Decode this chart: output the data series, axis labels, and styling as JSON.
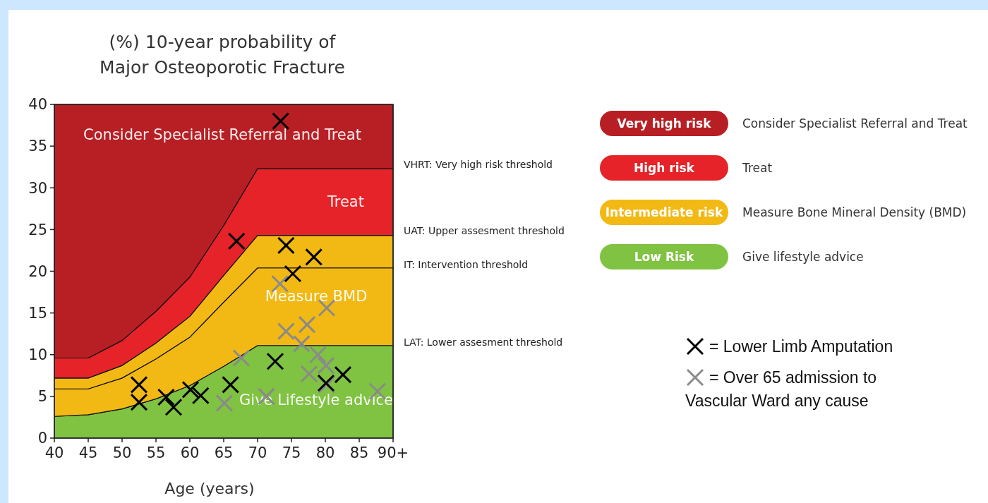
{
  "chart_data": {
    "type": "area",
    "stacked": true,
    "title": "(%) 10-year probability of\nMajor Osteoporotic Fracture",
    "xlabel": "Age (years)",
    "x": [
      40,
      45,
      50,
      55,
      60,
      65,
      70,
      75,
      80,
      85,
      90
    ],
    "xlim": [
      40,
      90
    ],
    "xticks": [
      40,
      45,
      50,
      55,
      60,
      65,
      70,
      75,
      80,
      85,
      {
        "value": 90,
        "label": "90+"
      }
    ],
    "ylim": [
      0,
      40
    ],
    "yticks": [
      0,
      5,
      10,
      15,
      20,
      25,
      30,
      35,
      40
    ],
    "legend": "right",
    "grid": false,
    "series": [
      {
        "name": "Low Risk",
        "color": "#80c242",
        "values": [
          2.6,
          2.8,
          3.5,
          4.7,
          6.3,
          8.6,
          11.1,
          11.1,
          11.1,
          11.1,
          11.1
        ]
      },
      {
        "color": "#f2b914",
        "values": [
          3.3,
          3.1,
          3.7,
          4.8,
          5.8,
          7.7,
          9.3,
          9.3,
          9.3,
          9.3,
          9.3
        ]
      },
      {
        "name": "Intermediate risk",
        "color": "#f2b914",
        "values": [
          1.3,
          1.3,
          1.5,
          1.9,
          2.5,
          3.2,
          3.9,
          3.9,
          3.9,
          3.9,
          3.9
        ]
      },
      {
        "name": "High risk",
        "color": "#e52329",
        "values": [
          2.4,
          2.4,
          3.0,
          3.8,
          4.7,
          6.0,
          8.0,
          8.0,
          8.0,
          8.0,
          8.0
        ]
      },
      {
        "name": "Very high risk",
        "color": "#b71f24",
        "values": [
          30.4,
          30.4,
          28.3,
          24.8,
          20.7,
          14.5,
          7.7,
          7.7,
          7.7,
          7.7,
          7.7
        ]
      },
      {
        "type": "scatter",
        "marker": "cross",
        "name": "= Over 65 admission to Vascular Ward any cause",
        "color": "#8a8a8a",
        "x": [
          73.3,
          80.2,
          74.2,
          77.3,
          76.5,
          78.9,
          80.1,
          77.6,
          67.6,
          71.3,
          65.1,
          87.7,
          80.2
        ],
        "values": [
          18.5,
          15.6,
          12.8,
          13.6,
          11.3,
          10.0,
          8.7,
          7.7,
          9.6,
          5.0,
          4.2,
          5.6,
          6.4
        ]
      },
      {
        "type": "scatter",
        "marker": "cross",
        "name": "= Lower Limb Amputation",
        "color": "#000000",
        "x": [
          73.4,
          66.9,
          74.2,
          78.3,
          75.2,
          72.6,
          52.5,
          52.5,
          56.5,
          57.6,
          60.1,
          61.6,
          66.0,
          82.6,
          80.1
        ],
        "values": [
          38.0,
          23.6,
          23.1,
          21.7,
          19.7,
          9.2,
          6.4,
          4.3,
          4.9,
          3.7,
          5.8,
          5.1,
          6.4,
          7.6,
          6.6
        ]
      }
    ],
    "annotations": [
      "Consider Specialist Referral and Treat",
      "Treat",
      "Measure BMD",
      "Give Lifestyle advice",
      "VHRT: Very high risk threshold",
      "UAT: Upper assesment  threshold",
      "IT: Intervention  threshold",
      "LAT: Lower assesment  threshold",
      "Consider Specialist Referral and Treat",
      "Treat",
      "Measure Bone Mineral Density (BMD)",
      "Give lifestyle advice"
    ]
  }
}
